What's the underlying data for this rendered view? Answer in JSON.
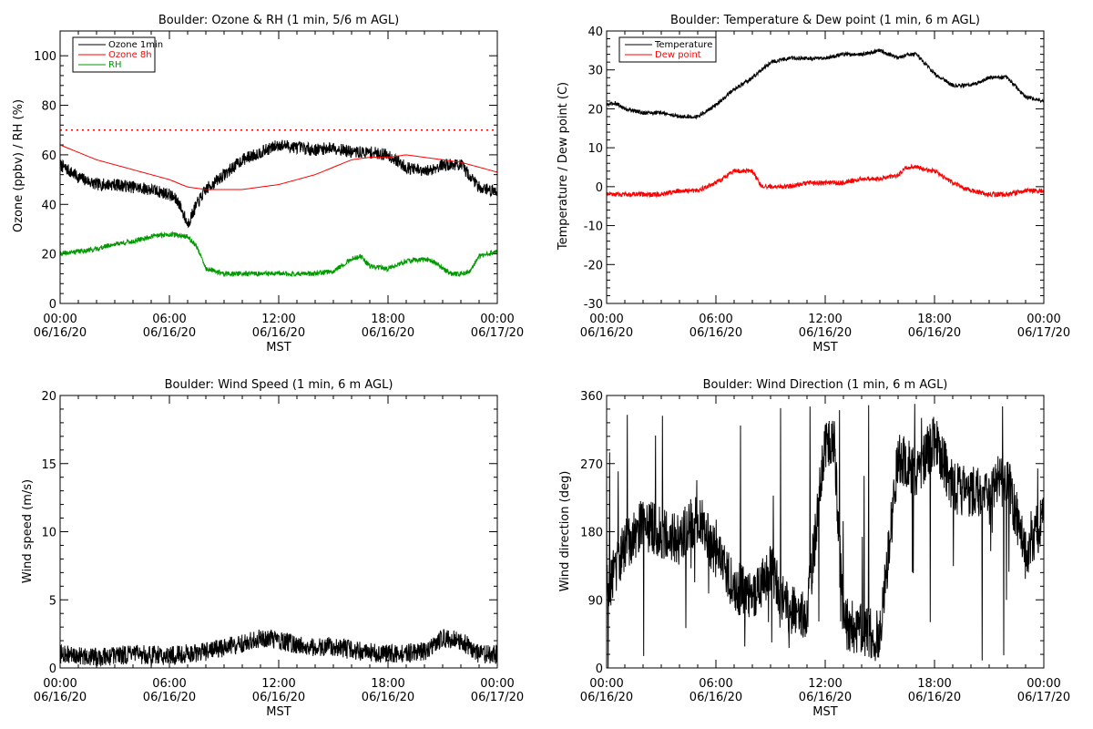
{
  "x_axis": {
    "ticks": [
      "00:00\n06/16/20",
      "06:00\n06/16/20",
      "12:00\n06/16/20",
      "18:00\n06/16/20",
      "00:00\n06/17/20"
    ],
    "label": "MST",
    "range_hours": [
      0,
      24
    ]
  },
  "chart_data": [
    {
      "type": "line",
      "title": "Boulder: Ozone & RH (1 min, 5/6 m AGL)",
      "ylabel": "Ozone (ppbv) / RH (%)",
      "ylim": [
        0,
        110
      ],
      "yticks": [
        0,
        20,
        40,
        60,
        80,
        100
      ],
      "xlabel": "MST",
      "legend_position": "top-left",
      "reference_line": {
        "y": 70,
        "color": "#ff0000",
        "style": "dotted"
      },
      "series": [
        {
          "name": "Ozone 1min",
          "color": "#000000",
          "noise": 2.5,
          "hours": [
            0,
            1,
            2,
            3,
            4,
            5,
            6,
            6.5,
            7,
            7.5,
            8,
            9,
            10,
            11,
            12,
            13,
            14,
            15,
            16,
            17,
            18,
            19,
            20,
            21,
            22,
            23,
            24
          ],
          "values": [
            56,
            51,
            48,
            48,
            47,
            46,
            44,
            41,
            32,
            40,
            46,
            52,
            58,
            61,
            64,
            63,
            62,
            63,
            61,
            61,
            60,
            55,
            53,
            56,
            56,
            47,
            45
          ]
        },
        {
          "name": "Ozone 8h",
          "color": "#ff0000",
          "noise": 0,
          "hours": [
            0,
            2,
            4,
            6,
            7,
            8,
            9,
            10,
            12,
            14,
            15,
            16,
            17,
            18,
            19,
            20,
            21,
            22,
            23,
            24
          ],
          "values": [
            64,
            58,
            54,
            50,
            47,
            46,
            46,
            46,
            48,
            52,
            55,
            58,
            59,
            59,
            60,
            59,
            58,
            57,
            55,
            53
          ]
        },
        {
          "name": "RH",
          "color": "#009900",
          "noise": 1,
          "hours": [
            0,
            1,
            2,
            3,
            4,
            5,
            6,
            7,
            7.5,
            8,
            9,
            10,
            12,
            14,
            15,
            16,
            16.5,
            17,
            18,
            19,
            20,
            20.5,
            21,
            21.5,
            22,
            22.5,
            23,
            23.5,
            24
          ],
          "values": [
            20,
            21,
            22,
            24,
            25,
            27,
            28,
            27,
            23,
            14,
            12,
            12,
            12,
            12,
            13,
            18,
            19,
            15,
            14,
            17,
            18,
            17,
            14,
            12,
            12,
            13,
            19,
            20,
            21
          ]
        }
      ]
    },
    {
      "type": "line",
      "title": "Boulder: Temperature & Dew point (1 min, 6 m AGL)",
      "ylabel": "Temperature / Dew point (C)",
      "ylim": [
        -30,
        40
      ],
      "yticks": [
        -30,
        -20,
        -10,
        0,
        10,
        20,
        30,
        40
      ],
      "xlabel": "MST",
      "legend_position": "top-left",
      "series": [
        {
          "name": "Temperature",
          "color": "#000000",
          "noise": 0.5,
          "hours": [
            0,
            0.5,
            1,
            2,
            3,
            4,
            5,
            6,
            7,
            8,
            9,
            10,
            11,
            12,
            13,
            14,
            15,
            16,
            16.5,
            17,
            18,
            19,
            20,
            21,
            22,
            23,
            24
          ],
          "values": [
            21,
            21.5,
            20,
            19,
            19,
            18,
            18,
            21,
            25,
            28,
            32,
            33,
            33,
            33,
            34,
            34,
            35,
            33,
            34,
            34,
            29,
            26,
            26,
            28,
            28,
            23,
            22
          ]
        },
        {
          "name": "Dew point",
          "color": "#ff0000",
          "noise": 0.6,
          "hours": [
            0,
            1,
            2,
            3,
            4,
            5,
            6,
            7,
            8,
            8.5,
            9,
            10,
            11,
            12,
            13,
            14,
            15,
            16,
            16.5,
            17,
            18,
            19,
            20,
            21,
            22,
            23,
            24
          ],
          "values": [
            -2,
            -2,
            -2,
            -2,
            -1,
            -1,
            1,
            4,
            4,
            0,
            0,
            0,
            1,
            1,
            1,
            2,
            2,
            3,
            5,
            5,
            4,
            1,
            -1,
            -2,
            -2,
            -1,
            -1
          ]
        }
      ]
    },
    {
      "type": "line",
      "title": "Boulder: Wind Speed (1 min, 6 m AGL)",
      "ylabel": "Wind speed (m/s)",
      "ylim": [
        0,
        20
      ],
      "yticks": [
        0,
        5,
        10,
        15,
        20
      ],
      "xlabel": "MST",
      "series": [
        {
          "color": "#000000",
          "noise": 0.7,
          "hours": [
            0,
            2,
            4,
            6,
            8,
            10,
            11,
            12,
            14,
            15,
            16,
            18,
            20,
            21,
            22,
            23,
            24
          ],
          "values": [
            1.0,
            0.8,
            1.0,
            0.9,
            1.2,
            1.8,
            2.2,
            2.0,
            1.5,
            1.6,
            1.3,
            1.0,
            1.2,
            2.2,
            2.0,
            1.0,
            1.0
          ]
        }
      ]
    },
    {
      "type": "line",
      "title": "Boulder: Wind Direction (1 min, 6 m AGL)",
      "ylabel": "Wind direction (deg)",
      "ylim": [
        0,
        360
      ],
      "yticks": [
        0,
        90,
        180,
        270,
        360
      ],
      "xlabel": "MST",
      "series": [
        {
          "color": "#000000",
          "noise": 35,
          "spikes": true,
          "hours": [
            0,
            1,
            2,
            3,
            4,
            5,
            6,
            7,
            8,
            9,
            10,
            11,
            12,
            12.5,
            13,
            14,
            15,
            16,
            17,
            18,
            19,
            20,
            21,
            22,
            23,
            24
          ],
          "values": [
            100,
            160,
            190,
            180,
            170,
            200,
            150,
            110,
            90,
            130,
            80,
            70,
            300,
            300,
            60,
            50,
            40,
            280,
            260,
            300,
            240,
            230,
            240,
            250,
            150,
            200
          ]
        }
      ]
    }
  ]
}
